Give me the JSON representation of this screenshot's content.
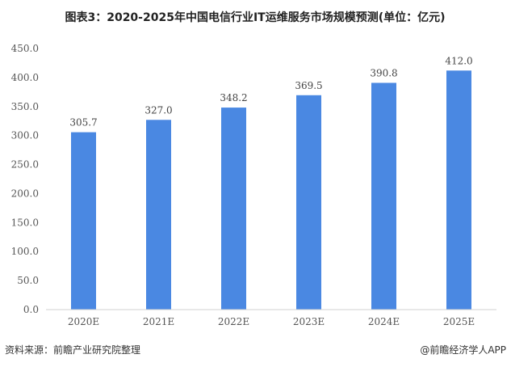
{
  "chart_data": {
    "type": "bar",
    "title": "图表3：2020-2025年中国电信行业IT运维服务市场规模预测(单位：亿元)",
    "categories": [
      "2020E",
      "2021E",
      "2022E",
      "2023E",
      "2024E",
      "2025E"
    ],
    "values": [
      305.7,
      327.0,
      348.2,
      369.5,
      390.8,
      412.0
    ],
    "data_labels": [
      "305.7",
      "327.0",
      "348.2",
      "369.5",
      "390.8",
      "412.0"
    ],
    "xlabel": "",
    "ylabel": "",
    "ylim": [
      0,
      450
    ],
    "yticks": [
      "0.0",
      "50.0",
      "100.0",
      "150.0",
      "200.0",
      "250.0",
      "300.0",
      "350.0",
      "400.0",
      "450.0"
    ],
    "grid": false,
    "bar_color": "#4a88e2"
  },
  "footer": {
    "source": "资料来源：前瞻产业研究院整理",
    "credit": "@前瞻经济学人APP"
  }
}
